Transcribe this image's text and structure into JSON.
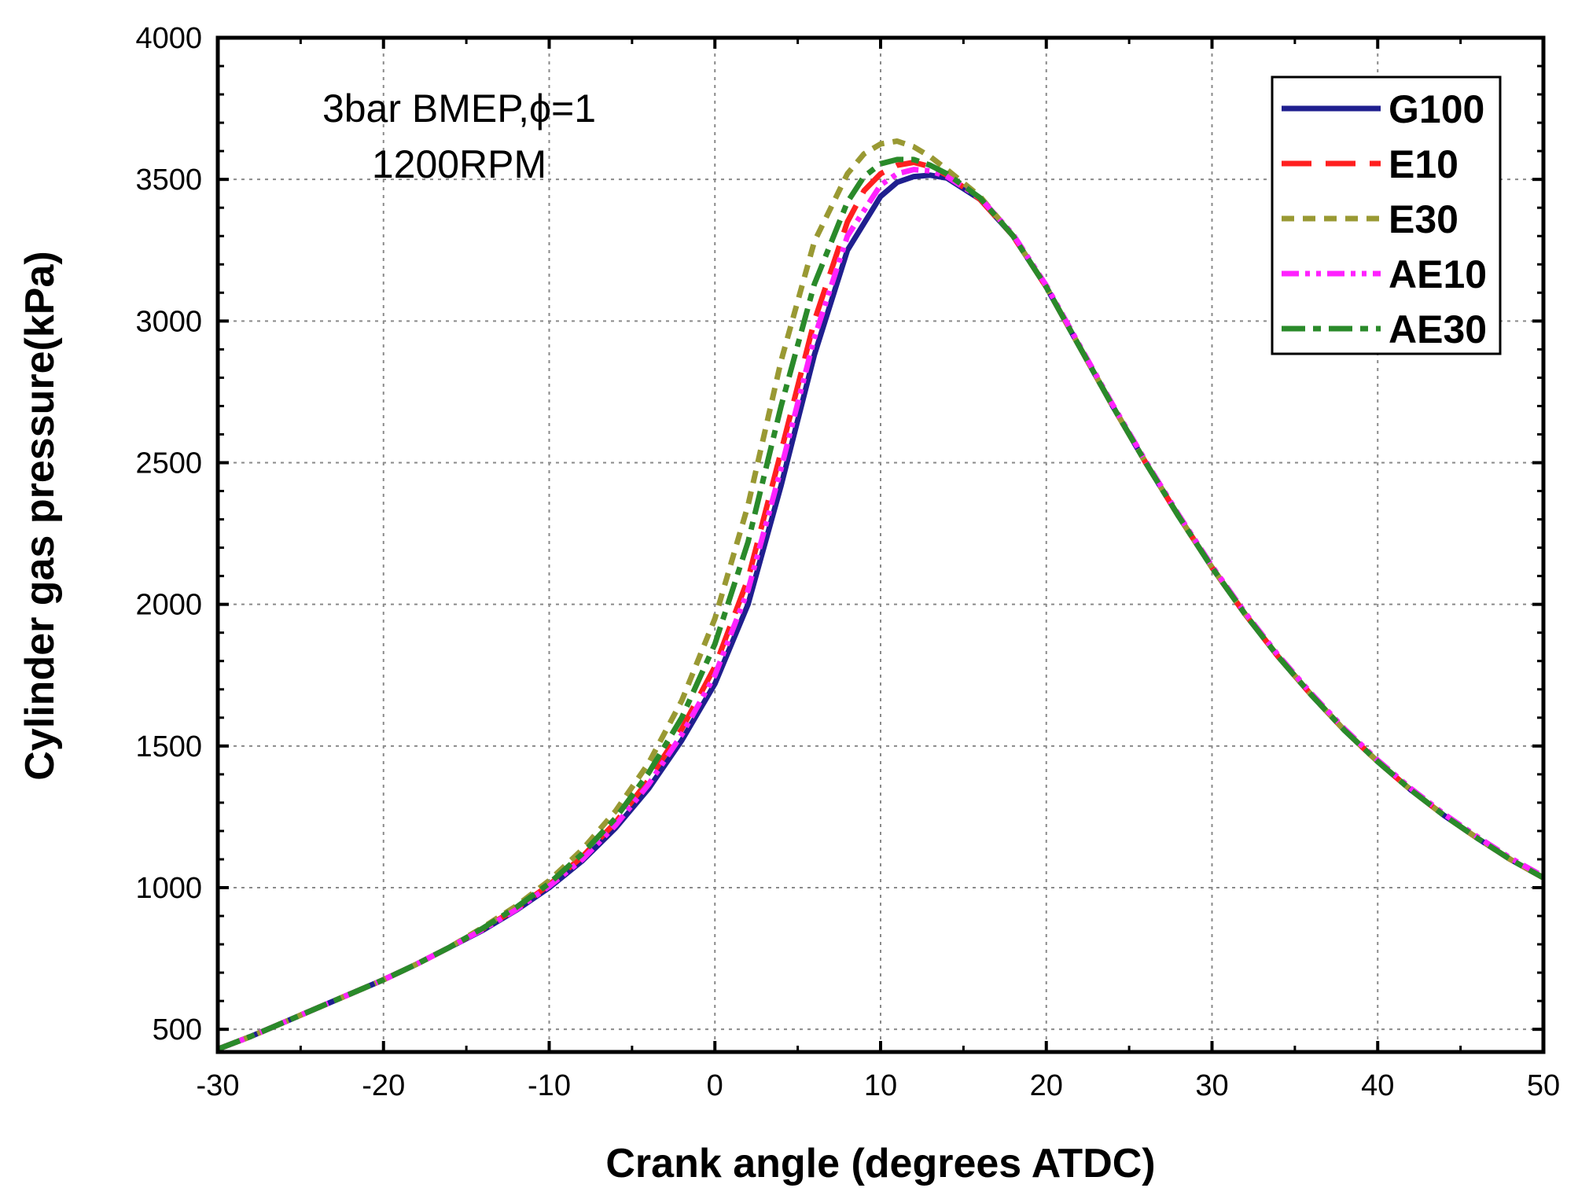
{
  "chart_data": {
    "type": "line",
    "title": "",
    "xlabel": "Crank angle (degrees  ATDC)",
    "ylabel": "Cylinder gas pressure(kPa)",
    "xlim": [
      -30,
      50
    ],
    "ylim": [
      420,
      4000
    ],
    "xticks": [
      -30,
      -20,
      -10,
      0,
      10,
      20,
      30,
      40,
      50
    ],
    "yticks": [
      500,
      1000,
      1500,
      2000,
      2500,
      3000,
      3500,
      4000
    ],
    "xtick_labels": [
      "-30",
      "-20",
      "-10",
      "0",
      "10",
      "20",
      "30",
      "40",
      "50"
    ],
    "ytick_labels": [
      "500",
      "1000",
      "1500",
      "2000",
      "2500",
      "3000",
      "3500",
      "4000"
    ],
    "grid": true,
    "legend_position": "top-right",
    "annotations": [
      "3bar BMEP,ϕ=1",
      "1200RPM"
    ],
    "series": [
      {
        "name": "G100",
        "color": "#1f1f8f",
        "dash": "solid",
        "x": [
          -30,
          -28,
          -26,
          -24,
          -22,
          -20,
          -18,
          -16,
          -14,
          -12,
          -10,
          -8,
          -6,
          -4,
          -2,
          0,
          2,
          4,
          6,
          8,
          10,
          11,
          12,
          13,
          14,
          16,
          18,
          20,
          22,
          24,
          26,
          28,
          30,
          32,
          34,
          36,
          38,
          40,
          42,
          44,
          46,
          48,
          50
        ],
        "y": [
          430,
          475,
          525,
          575,
          625,
          675,
          730,
          790,
          850,
          920,
          1000,
          1095,
          1210,
          1350,
          1520,
          1720,
          2000,
          2420,
          2880,
          3250,
          3440,
          3490,
          3510,
          3515,
          3505,
          3430,
          3300,
          3120,
          2910,
          2700,
          2500,
          2310,
          2130,
          1965,
          1815,
          1680,
          1555,
          1445,
          1345,
          1255,
          1175,
          1100,
          1035
        ]
      },
      {
        "name": "E10",
        "color": "#ff2020",
        "dash": "long-dash",
        "x": [
          -30,
          -28,
          -26,
          -24,
          -22,
          -20,
          -18,
          -16,
          -14,
          -12,
          -10,
          -8,
          -6,
          -4,
          -2,
          0,
          2,
          4,
          6,
          8,
          9,
          10,
          11,
          12,
          13,
          14,
          16,
          18,
          20,
          22,
          24,
          26,
          28,
          30,
          32,
          34,
          36,
          38,
          40,
          42,
          44,
          46,
          48,
          50
        ],
        "y": [
          430,
          475,
          525,
          575,
          625,
          675,
          730,
          790,
          855,
          925,
          1010,
          1110,
          1230,
          1380,
          1560,
          1780,
          2090,
          2540,
          3000,
          3350,
          3460,
          3520,
          3550,
          3560,
          3545,
          3515,
          3430,
          3300,
          3120,
          2910,
          2700,
          2500,
          2310,
          2130,
          1965,
          1815,
          1680,
          1555,
          1445,
          1345,
          1255,
          1175,
          1100,
          1035
        ]
      },
      {
        "name": "E30",
        "color": "#999933",
        "dash": "short-dash",
        "x": [
          -30,
          -28,
          -26,
          -24,
          -22,
          -20,
          -18,
          -16,
          -14,
          -12,
          -10,
          -8,
          -6,
          -4,
          -2,
          0,
          2,
          4,
          6,
          8,
          9,
          10,
          11,
          12,
          13,
          14,
          16,
          18,
          20,
          22,
          24,
          26,
          28,
          30,
          32,
          34,
          36,
          38,
          40,
          42,
          44,
          46,
          48,
          50
        ],
        "y": [
          430,
          475,
          525,
          575,
          625,
          675,
          730,
          790,
          860,
          935,
          1025,
          1135,
          1270,
          1440,
          1660,
          1950,
          2350,
          2860,
          3280,
          3520,
          3590,
          3625,
          3635,
          3615,
          3580,
          3535,
          3440,
          3300,
          3120,
          2910,
          2700,
          2500,
          2310,
          2130,
          1965,
          1815,
          1680,
          1555,
          1445,
          1345,
          1255,
          1175,
          1100,
          1035
        ]
      },
      {
        "name": "AE10",
        "color": "#ff22ff",
        "dash": "dash-dot-dot",
        "x": [
          -30,
          -28,
          -26,
          -24,
          -22,
          -20,
          -18,
          -16,
          -14,
          -12,
          -10,
          -8,
          -6,
          -4,
          -2,
          0,
          2,
          4,
          6,
          8,
          10,
          11,
          12,
          13,
          14,
          16,
          18,
          20,
          22,
          24,
          26,
          28,
          30,
          32,
          34,
          36,
          38,
          40,
          42,
          44,
          46,
          48,
          50
        ],
        "y": [
          430,
          475,
          525,
          575,
          625,
          675,
          730,
          790,
          852,
          922,
          1005,
          1100,
          1220,
          1365,
          1540,
          1750,
          2050,
          2480,
          2940,
          3300,
          3480,
          3520,
          3535,
          3530,
          3510,
          3435,
          3305,
          3125,
          2915,
          2705,
          2505,
          2315,
          2135,
          1970,
          1820,
          1685,
          1560,
          1450,
          1350,
          1260,
          1180,
          1105,
          1040
        ]
      },
      {
        "name": "AE30",
        "color": "#2a8a2a",
        "dash": "dash-dot",
        "x": [
          -30,
          -28,
          -26,
          -24,
          -22,
          -20,
          -18,
          -16,
          -14,
          -12,
          -10,
          -8,
          -6,
          -4,
          -2,
          0,
          2,
          4,
          6,
          8,
          9,
          10,
          11,
          12,
          13,
          14,
          16,
          18,
          20,
          22,
          24,
          26,
          28,
          30,
          32,
          34,
          36,
          38,
          40,
          42,
          44,
          46,
          48,
          50
        ],
        "y": [
          430,
          475,
          525,
          575,
          625,
          675,
          730,
          790,
          857,
          930,
          1015,
          1120,
          1245,
          1405,
          1600,
          1860,
          2220,
          2700,
          3130,
          3420,
          3510,
          3555,
          3570,
          3570,
          3550,
          3520,
          3435,
          3300,
          3120,
          2910,
          2700,
          2500,
          2310,
          2130,
          1965,
          1815,
          1680,
          1555,
          1445,
          1345,
          1255,
          1175,
          1100,
          1035
        ]
      }
    ]
  }
}
